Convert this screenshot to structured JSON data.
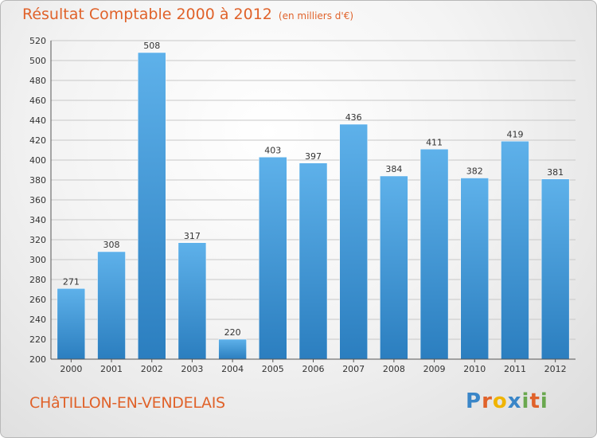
{
  "header": {
    "title": "Résultat Comptable 2000 à 2012",
    "subtitle": "(en milliers d'€)"
  },
  "footer": {
    "commune": "CHâTILLON-EN-VENDELAIS",
    "logo_letters": [
      "P",
      "r",
      "o",
      "x",
      "i",
      "t",
      "i"
    ],
    "logo_colors": [
      "#3a86c8",
      "#e0622a",
      "#f0b400",
      "#3a86c8",
      "#6aa84f",
      "#e0622a",
      "#6aa84f"
    ]
  },
  "colors": {
    "bar_top": "#5eb1ea",
    "bar_bottom": "#2b7ebf",
    "grid": "#c8c8c8",
    "title": "#e0622a"
  },
  "chart_data": {
    "type": "bar",
    "title": "Résultat Comptable 2000 à 2012",
    "subtitle": "(en milliers d'€)",
    "categories": [
      "2000",
      "2001",
      "2002",
      "2003",
      "2004",
      "2005",
      "2006",
      "2007",
      "2008",
      "2009",
      "2010",
      "2011",
      "2012"
    ],
    "values": [
      271,
      308,
      508,
      317,
      220,
      403,
      397,
      436,
      384,
      411,
      382,
      419,
      381
    ],
    "ylim": [
      200,
      520
    ],
    "yticks": [
      200,
      220,
      240,
      260,
      280,
      300,
      320,
      340,
      360,
      380,
      400,
      420,
      440,
      460,
      480,
      500,
      520
    ],
    "grid": true
  }
}
